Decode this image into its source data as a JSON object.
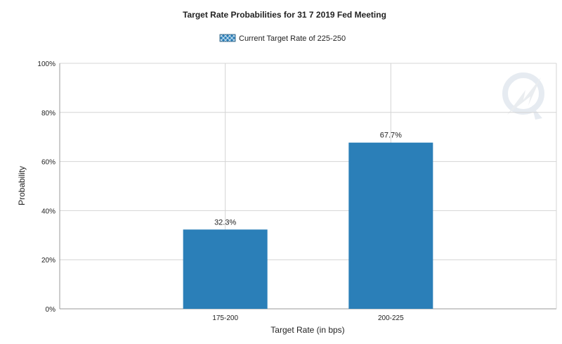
{
  "chart_data": {
    "type": "bar",
    "title": "Target Rate Probabilities for 31 7 2019 Fed Meeting",
    "xlabel": "Target Rate (in bps)",
    "ylabel": "Probability",
    "categories": [
      "175-200",
      "200-225"
    ],
    "series": [
      {
        "name": "Current Target Rate of 225-250",
        "values": [
          32.3,
          67.7
        ],
        "labels": [
          "32.3%",
          "67.7%"
        ],
        "color": "#2b7fb8"
      }
    ],
    "ylim": [
      0,
      100
    ],
    "yticks": [
      "0%",
      "20%",
      "40%",
      "60%",
      "80%",
      "100%"
    ],
    "grid": true,
    "legend": "top-center"
  }
}
